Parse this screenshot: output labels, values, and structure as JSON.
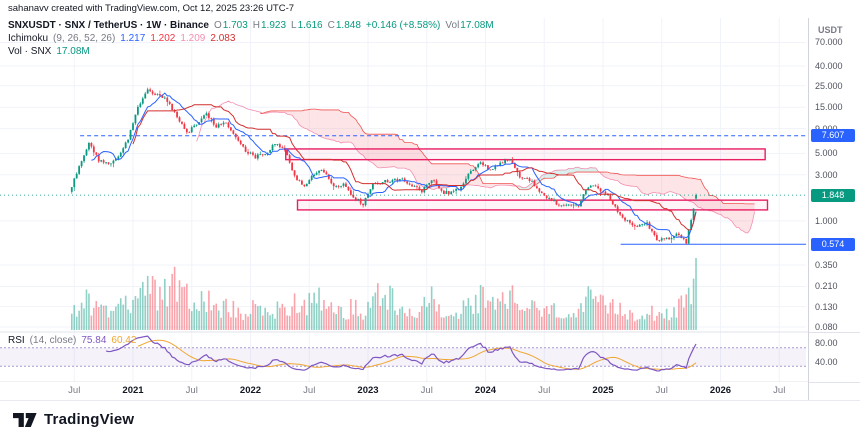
{
  "watermark": "sahanavv created with TradingView.com, Oct 12, 2025 23:26 UTC-7",
  "footer": {
    "brand": "TradingView"
  },
  "legend": {
    "symbol_row": {
      "title": "SNXUSDT · SNX / TetherUS · 1W · Binance",
      "ohlc": [
        [
          "O",
          "1.703"
        ],
        [
          "H",
          "1.923"
        ],
        [
          "L",
          "1.616"
        ],
        [
          "C",
          "1.848"
        ]
      ],
      "change": "+0.146 (+8.58%)",
      "vol_label": "Vol",
      "vol_value": "17.08M"
    },
    "ichimoku_row": {
      "name": "Ichimoku",
      "params": "(9, 26, 52, 26)",
      "values": [
        "1.217",
        "1.202",
        "1.209",
        "2.083"
      ]
    },
    "vol_row": {
      "name": "Vol · SNX",
      "value": "17.08M"
    },
    "rsi_row": {
      "name": "RSI",
      "params": "(14, close)",
      "value_main": "75.84",
      "value_ma": "60.42"
    }
  },
  "price_axis": {
    "currency": "USDT",
    "labels": [
      [
        "70.000",
        70
      ],
      [
        "40.000",
        40
      ],
      [
        "25.000",
        25
      ],
      [
        "15.000",
        15
      ],
      [
        "9.000",
        9
      ],
      [
        "5.000",
        5
      ],
      [
        "3.000",
        3
      ],
      [
        "1.000",
        1
      ],
      [
        "0.350",
        0.35
      ],
      [
        "0.210",
        0.21
      ],
      [
        "0.130",
        0.13
      ],
      [
        "0.080",
        0.08
      ]
    ],
    "badges": [
      {
        "label": "7.607",
        "price": 7.607,
        "color": "#2962ff"
      },
      {
        "label": "0.574",
        "price": 0.574,
        "color": "#2962ff"
      },
      {
        "label": "1.848",
        "price": 1.848,
        "color": "#089981"
      }
    ]
  },
  "time_axis": {
    "labels": [
      [
        "Jul",
        2020.5,
        "minor"
      ],
      [
        "2021",
        2021,
        "year"
      ],
      [
        "Jul",
        2021.5,
        "minor"
      ],
      [
        "2022",
        2022,
        "year"
      ],
      [
        "Jul",
        2022.5,
        "minor"
      ],
      [
        "2023",
        2023,
        "year"
      ],
      [
        "Jul",
        2023.5,
        "minor"
      ],
      [
        "2024",
        2024,
        "year"
      ],
      [
        "Jul",
        2024.5,
        "minor"
      ],
      [
        "2025",
        2025,
        "year"
      ],
      [
        "Jul",
        2025.5,
        "minor"
      ],
      [
        "2026",
        2026,
        "year"
      ],
      [
        "Jul",
        2026.5,
        "minor"
      ]
    ]
  },
  "colors": {
    "up": "#089981",
    "down": "#f23645",
    "vol_up": "rgba(8,153,129,0.45)",
    "vol_down": "rgba(242,54,69,0.45)",
    "cloud_red": "rgba(242,54,69,0.13)",
    "cloud_green": "rgba(8,153,129,0.15)",
    "tenkan": "#2962ff",
    "kijun": "#d32f2f",
    "senkou_a": "#f48fb1",
    "senkou_b": "#ef5350",
    "magenta": "#e91e63",
    "box_fill": "rgba(233,30,99,0.05)",
    "grid": "#f0f3fa",
    "separator": "#e0e3eb",
    "rsi_line": "#7e57c2",
    "rsi_ma": "#f0a732",
    "rsi_band": "rgba(126,87,194,0.08)",
    "rsi_dash": "#a79ccf",
    "ichimoku_values": [
      "#2962ff",
      "#f23645",
      "#f48fb1",
      "#d32f2f"
    ]
  },
  "chart_data": {
    "type": "candlestick",
    "symbol": "SNXUSDT",
    "exchange": "Binance",
    "timeframe": "1W",
    "scale": "log",
    "ylim": [
      0.08,
      70
    ],
    "last_candle": {
      "o": 1.703,
      "h": 1.923,
      "l": 1.616,
      "c": 1.848
    },
    "last_change": 0.146,
    "last_change_pct": 8.58,
    "last_volume": 17.08,
    "anchors": [
      [
        "2020-06",
        2.0,
        3
      ],
      [
        "2020-07",
        3.6,
        5
      ],
      [
        "2020-08",
        6.5,
        7
      ],
      [
        "2020-09",
        4.3,
        5
      ],
      [
        "2020-10",
        3.9,
        4
      ],
      [
        "2020-11",
        4.7,
        5
      ],
      [
        "2020-12",
        7.2,
        6
      ],
      [
        "2021-01",
        15.5,
        10
      ],
      [
        "2021-02",
        22.0,
        12
      ],
      [
        "2021-03",
        20.0,
        9
      ],
      [
        "2021-04",
        17.5,
        8
      ],
      [
        "2021-05",
        12.0,
        11
      ],
      [
        "2021-06",
        8.0,
        8
      ],
      [
        "2021-07",
        10.0,
        6
      ],
      [
        "2021-08",
        13.0,
        7
      ],
      [
        "2021-09",
        9.5,
        6
      ],
      [
        "2021-10",
        10.5,
        5
      ],
      [
        "2021-11",
        7.5,
        5
      ],
      [
        "2021-12",
        5.4,
        4
      ],
      [
        "2022-01",
        4.6,
        5
      ],
      [
        "2022-02",
        5.0,
        4
      ],
      [
        "2022-03",
        6.2,
        5
      ],
      [
        "2022-04",
        5.4,
        4
      ],
      [
        "2022-05",
        2.9,
        7
      ],
      [
        "2022-06",
        2.2,
        6
      ],
      [
        "2022-07",
        3.1,
        9
      ],
      [
        "2022-08",
        3.3,
        8
      ],
      [
        "2022-09",
        2.3,
        5
      ],
      [
        "2022-10",
        2.4,
        4
      ],
      [
        "2022-11",
        1.8,
        6
      ],
      [
        "2022-12",
        1.5,
        4
      ],
      [
        "2023-01",
        2.4,
        7
      ],
      [
        "2023-02",
        2.55,
        8
      ],
      [
        "2023-03",
        2.6,
        7
      ],
      [
        "2023-04",
        2.7,
        6
      ],
      [
        "2023-05",
        2.3,
        4
      ],
      [
        "2023-06",
        2.0,
        6
      ],
      [
        "2023-07",
        2.7,
        7
      ],
      [
        "2023-08",
        2.0,
        5
      ],
      [
        "2023-09",
        1.95,
        3.5
      ],
      [
        "2023-10",
        2.2,
        4
      ],
      [
        "2023-11",
        3.3,
        7
      ],
      [
        "2023-12",
        4.0,
        8
      ],
      [
        "2024-01",
        3.4,
        6
      ],
      [
        "2024-02",
        3.9,
        6
      ],
      [
        "2024-03",
        4.4,
        8
      ],
      [
        "2024-04",
        2.9,
        6
      ],
      [
        "2024-05",
        2.7,
        5
      ],
      [
        "2024-06",
        2.0,
        5
      ],
      [
        "2024-07",
        1.7,
        4
      ],
      [
        "2024-08",
        1.45,
        5
      ],
      [
        "2024-09",
        1.5,
        3.5
      ],
      [
        "2024-10",
        1.45,
        3.5
      ],
      [
        "2024-11",
        2.3,
        7
      ],
      [
        "2024-12",
        2.2,
        6
      ],
      [
        "2025-01",
        1.8,
        5
      ],
      [
        "2025-02",
        1.25,
        5
      ],
      [
        "2025-03",
        1.0,
        4
      ],
      [
        "2025-04",
        0.85,
        4
      ],
      [
        "2025-05",
        0.95,
        5
      ],
      [
        "2025-06",
        0.62,
        4
      ],
      [
        "2025-07",
        0.66,
        4
      ],
      [
        "2025-08",
        0.72,
        5
      ],
      [
        "2025-09",
        0.6,
        6
      ],
      [
        "2025-10",
        1.848,
        12
      ]
    ],
    "overlays": {
      "horizontal_lines": [
        {
          "price": 7.607,
          "style": "dashed",
          "color": "#2962ff",
          "from_t": 2020.55,
          "label": "7.607"
        },
        {
          "price": 0.574,
          "style": "solid",
          "color": "#2962ff",
          "from_t": 2025.15,
          "label": "0.574"
        }
      ],
      "boxes": [
        {
          "t1": 2022.3,
          "t2": 2026.38,
          "p_top": 5.55,
          "p_bottom": 4.3
        },
        {
          "t1": 2022.4,
          "t2": 2026.4,
          "p_top": 1.64,
          "p_bottom": 1.3
        }
      ],
      "last_price_line": 1.848
    },
    "ichimoku": {
      "params": [
        9,
        26,
        52,
        26
      ]
    },
    "rsi": {
      "period": 14,
      "ma_period": 14,
      "bands": [
        70,
        30
      ],
      "current": 75.84,
      "current_ma": 60.42,
      "axis_labels": [
        [
          "80.00",
          80
        ],
        [
          "40.00",
          40
        ]
      ]
    }
  }
}
